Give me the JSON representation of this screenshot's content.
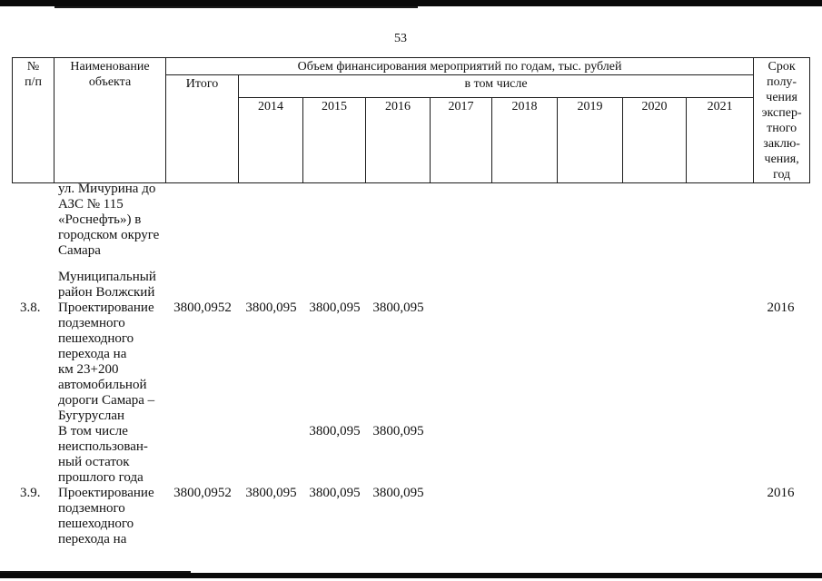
{
  "page": {
    "number": "53"
  },
  "table": {
    "header": {
      "num": "№\nп/п",
      "object_name": "Наименование\nобъекта",
      "financing_title": "Объем финансирования мероприятий по годам, тыс. рублей",
      "itogo": "Итого",
      "including": "в том числе",
      "years": [
        "2014",
        "2015",
        "2016",
        "2017",
        "2018",
        "2019",
        "2020",
        "2021"
      ],
      "srok": "Срок\nполу-\nчения\nэкспер-\nтного\nзаклю-\nчения,\nгод"
    },
    "body_lines": [
      {
        "name": "ул. Мичурина до"
      },
      {
        "name": "АЗС № 115"
      },
      {
        "name": "«Роснефть») в"
      },
      {
        "name": "городском округе"
      },
      {
        "name": "Самара"
      },
      {
        "blank": true
      },
      {
        "name": "Муниципальный"
      },
      {
        "name": "район Волжский"
      },
      {
        "num": "3.8.",
        "name": "Проектирование",
        "itogo": "3800,0952",
        "y2014": "3800,095",
        "y2015": "3800,095",
        "y2016": "3800,095",
        "srok": "2016"
      },
      {
        "name": "подземного"
      },
      {
        "name": "пешеходного"
      },
      {
        "name": "перехода на"
      },
      {
        "name": "км 23+200"
      },
      {
        "name": "автомобильной"
      },
      {
        "name": "дороги Самара –"
      },
      {
        "name": "Бугуруслан"
      },
      {
        "name": "В том числе",
        "y2015": "3800,095",
        "y2016": "3800,095"
      },
      {
        "name": "неиспользован-"
      },
      {
        "name": "ный остаток"
      },
      {
        "name": "прошлого года"
      },
      {
        "num": "3.9.",
        "name": "Проектирование",
        "itogo": "3800,0952",
        "y2014": "3800,095",
        "y2015": "3800,095",
        "y2016": "3800,095",
        "srok": "2016"
      },
      {
        "name": "подземного"
      },
      {
        "name": "пешеходного"
      },
      {
        "name": "перехода на"
      }
    ]
  }
}
